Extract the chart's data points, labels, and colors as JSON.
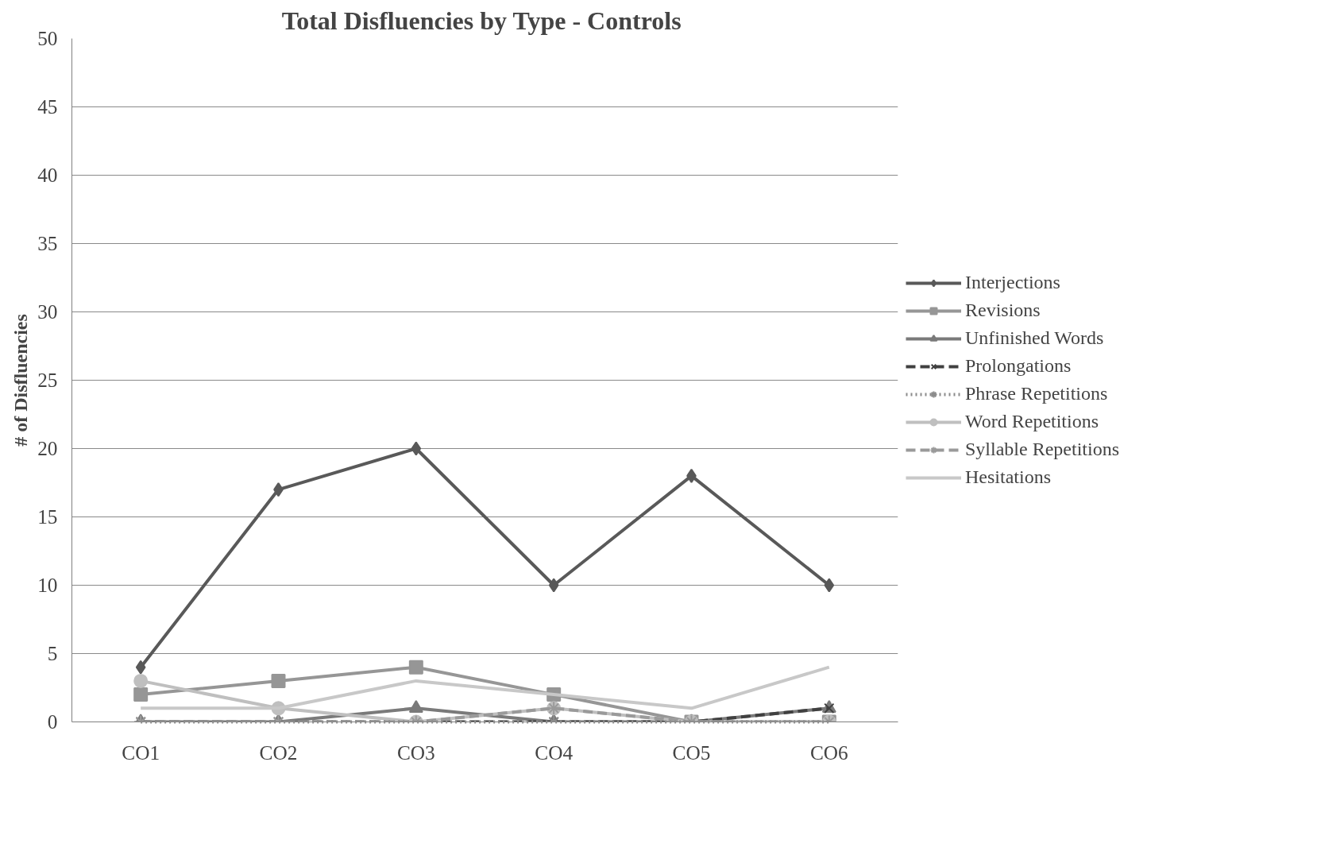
{
  "chart_data": {
    "type": "line",
    "title": "Total Disfluencies  by Type - Controls",
    "ylabel": "# of Disfluencies",
    "categories": [
      "CO1",
      "CO2",
      "CO3",
      "CO4",
      "CO5",
      "CO6"
    ],
    "ylim": [
      0,
      50
    ],
    "yticks": [
      0,
      5,
      10,
      15,
      20,
      25,
      30,
      35,
      40,
      45,
      50
    ],
    "grid": "y",
    "legend": "right",
    "series": [
      {
        "name": "Interjections",
        "color": "#595959",
        "marker": "diamond",
        "line_style": "solid",
        "values": [
          4,
          17,
          20,
          10,
          18,
          10
        ]
      },
      {
        "name": "Revisions",
        "color": "#969696",
        "marker": "square",
        "line_style": "solid",
        "values": [
          2,
          3,
          4,
          2,
          0,
          0
        ]
      },
      {
        "name": "Unfinished Words",
        "color": "#7a7a7a",
        "marker": "triangle",
        "line_style": "solid",
        "values": [
          0,
          0,
          1,
          0,
          0,
          1
        ]
      },
      {
        "name": "Prolongations",
        "color": "#404040",
        "marker": "x",
        "line_style": "dashed",
        "values": [
          0,
          0,
          0,
          0,
          0,
          1
        ]
      },
      {
        "name": "Phrase Repetitions",
        "color": "#8c8c8c",
        "marker": "cross",
        "line_style": "dotted",
        "values": [
          0,
          0,
          0,
          0,
          0,
          0
        ]
      },
      {
        "name": "Word Repetitions",
        "color": "#bfbfbf",
        "marker": "circle",
        "line_style": "solid",
        "values": [
          3,
          1,
          0,
          1,
          0,
          0
        ]
      },
      {
        "name": "Syllable Repetitions",
        "color": "#9a9a9a",
        "marker": "cross",
        "line_style": "dashed",
        "values": [
          0,
          0,
          0,
          1,
          0,
          0
        ]
      },
      {
        "name": "Hesitations",
        "color": "#c8c8c8",
        "marker": "none",
        "line_style": "solid",
        "values": [
          1,
          1,
          3,
          2,
          1,
          4
        ]
      }
    ]
  }
}
